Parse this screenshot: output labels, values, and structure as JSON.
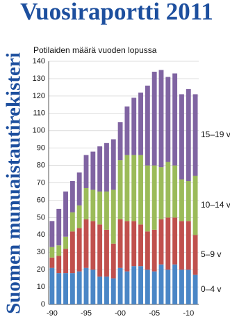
{
  "chart_data": {
    "type": "stacked-bar",
    "title": "Vuosiraportti 2011",
    "side_title": "Suomen munuaistautirekisteri",
    "subtitle": "Potilaiden määrä vuoden lopussa",
    "categories": [
      "-90",
      null,
      null,
      null,
      null,
      "-95",
      null,
      null,
      null,
      null,
      "-00",
      null,
      null,
      null,
      null,
      "-05",
      null,
      null,
      null,
      null,
      "-10",
      null
    ],
    "series": [
      {
        "name": "0–4 v",
        "color": "#4a86c6",
        "values": [
          21,
          18,
          18,
          18,
          19,
          21,
          20,
          16,
          16,
          15,
          21,
          19,
          22,
          22,
          20,
          19,
          23,
          20,
          23,
          20,
          20,
          17
        ]
      },
      {
        "name": "5–9 v",
        "color": "#c0504d",
        "values": [
          6,
          10,
          14,
          24,
          25,
          28,
          28,
          30,
          27,
          20,
          28,
          29,
          26,
          24,
          22,
          24,
          26,
          30,
          27,
          28,
          28,
          23
        ]
      },
      {
        "name": "10–14 v",
        "color": "#9bbb59",
        "values": [
          6,
          6,
          7,
          11,
          13,
          18,
          18,
          19,
          22,
          31,
          34,
          38,
          38,
          40,
          38,
          37,
          30,
          32,
          30,
          24,
          23,
          34
        ]
      },
      {
        "name": "15–19 v",
        "color": "#8064a2",
        "values": [
          15,
          21,
          26,
          18,
          19,
          19,
          22,
          26,
          28,
          29,
          22,
          28,
          33,
          36,
          46,
          54,
          56,
          49,
          53,
          49,
          53,
          47
        ]
      }
    ],
    "ylim": [
      0,
      140
    ],
    "yticks": [
      0,
      10,
      20,
      30,
      40,
      50,
      60,
      70,
      80,
      90,
      100,
      110,
      120,
      130,
      140
    ],
    "grid": true
  }
}
